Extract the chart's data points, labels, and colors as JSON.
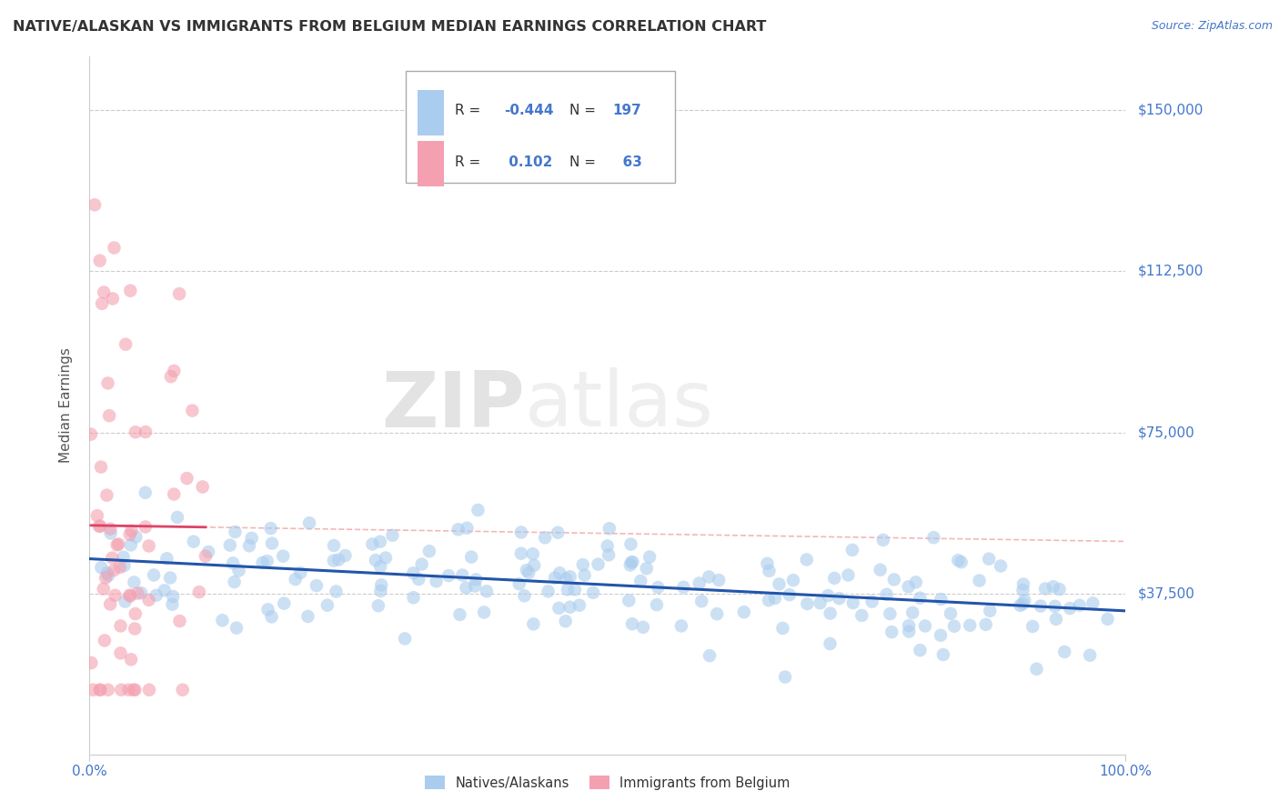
{
  "title": "NATIVE/ALASKAN VS IMMIGRANTS FROM BELGIUM MEDIAN EARNINGS CORRELATION CHART",
  "source": "Source: ZipAtlas.com",
  "ylabel": "Median Earnings",
  "watermark_zip": "ZIP",
  "watermark_atlas": "atlas",
  "xlim": [
    0.0,
    1.0
  ],
  "ylim": [
    0,
    162500
  ],
  "yticks": [
    0,
    37500,
    75000,
    112500,
    150000
  ],
  "ytick_labels": [
    "",
    "$37,500",
    "$75,000",
    "$112,500",
    "$150,000"
  ],
  "xtick_labels": [
    "0.0%",
    "100.0%"
  ],
  "blue_scatter_color": "#AACCEE",
  "pink_scatter_color": "#F4A0B0",
  "trend_blue": "#2255AA",
  "trend_pink_solid": "#DD4466",
  "trend_pink_dash": "#EE9999",
  "background": "#FFFFFF",
  "title_color": "#333333",
  "axis_label_color": "#4477CC",
  "grid_color": "#CCCCCC",
  "blue_scatter_alpha": 0.6,
  "pink_scatter_alpha": 0.6,
  "scatter_size": 110,
  "native_count": 197,
  "immigrant_count": 63
}
